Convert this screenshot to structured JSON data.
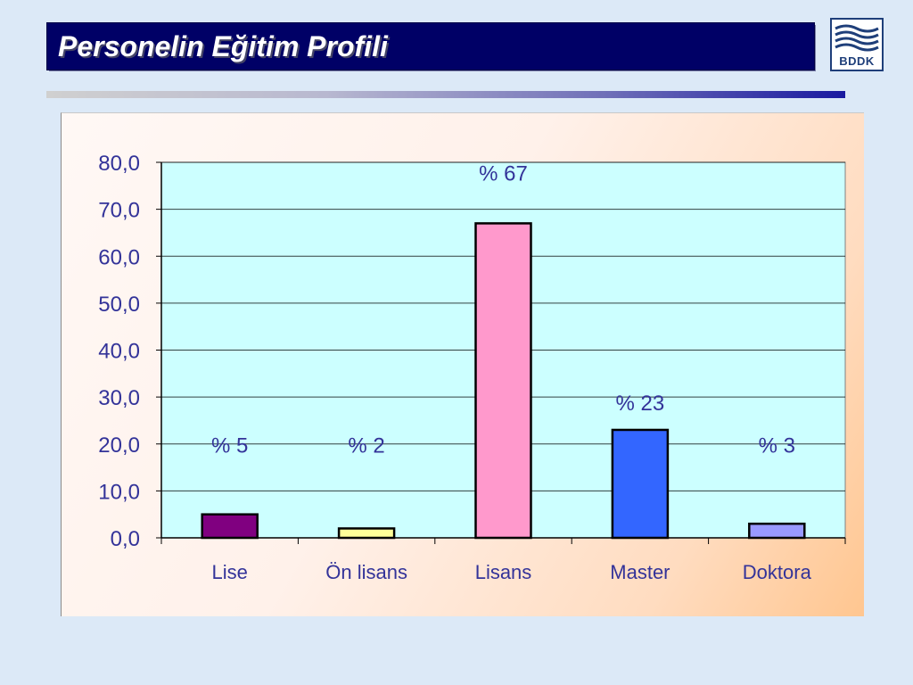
{
  "slide": {
    "title": "Personelin Eğitim Profili",
    "logo_text": "BDDK"
  },
  "colors": {
    "title_bar": "#000066",
    "plot_background": "#ccffff",
    "text": "#333399"
  },
  "chart_data": {
    "type": "bar",
    "title": "",
    "xlabel": "",
    "ylabel": "",
    "categories": [
      "Lise",
      "Ön lisans",
      "Lisans",
      "Master",
      "Doktora"
    ],
    "values": [
      5,
      2,
      67,
      23,
      3
    ],
    "data_labels": [
      "% 5",
      "% 2",
      "% 67",
      "% 23",
      "% 3"
    ],
    "bar_colors": [
      "#800080",
      "#ffff99",
      "#ff99cc",
      "#3366ff",
      "#9999ff"
    ],
    "ylim": [
      0,
      80
    ],
    "yticks": [
      0,
      10,
      20,
      30,
      40,
      50,
      60,
      70,
      80
    ],
    "ytick_labels": [
      "0,0",
      "10,0",
      "20,0",
      "30,0",
      "40,0",
      "50,0",
      "60,0",
      "70,0",
      "80,0"
    ],
    "grid": true,
    "legend": false
  }
}
